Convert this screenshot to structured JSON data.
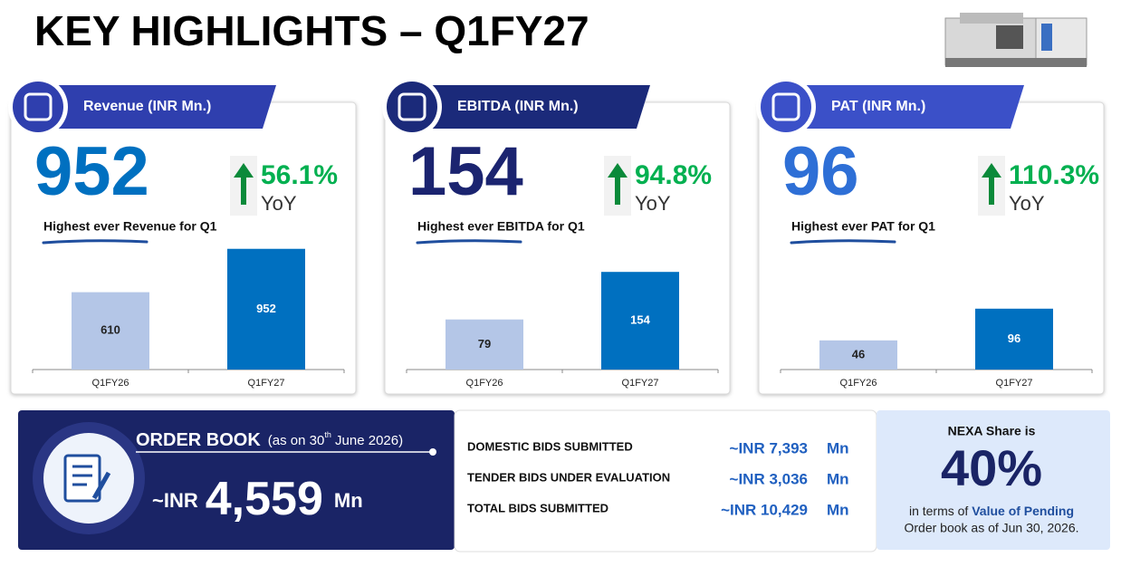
{
  "title": "KEY HIGHLIGHTS – Q1FY27",
  "cards": [
    {
      "label": "Revenue (INR Mn.)",
      "value": "952",
      "value_color": "#0070c0",
      "banner_color": "#2f3fae",
      "growth": "56.1%",
      "growth_unit": "YoY",
      "note": "Highest ever Revenue for Q1",
      "chart": {
        "type": "bar",
        "categories": [
          "Q1FY26",
          "Q1FY27"
        ],
        "values": [
          610,
          952
        ],
        "colors": [
          "#b4c6e7",
          "#0070c0"
        ],
        "ylim": [
          0,
          1000
        ]
      }
    },
    {
      "label": "EBITDA (INR Mn.)",
      "value": "154",
      "value_color": "#1b2470",
      "banner_color": "#1b2a7a",
      "growth": "94.8%",
      "growth_unit": "YoY",
      "note": "Highest ever EBITDA for Q1",
      "chart": {
        "type": "bar",
        "categories": [
          "Q1FY26",
          "Q1FY27"
        ],
        "values": [
          79,
          154
        ],
        "colors": [
          "#b4c6e7",
          "#0070c0"
        ],
        "ylim": [
          0,
          200
        ]
      }
    },
    {
      "label": "PAT (INR Mn.)",
      "value": "96",
      "value_color": "#2e6fd6",
      "banner_color": "#3b50c8",
      "growth": "110.3%",
      "growth_unit": "YoY",
      "note": "Highest ever PAT for Q1",
      "chart": {
        "type": "bar",
        "categories": [
          "Q1FY26",
          "Q1FY27"
        ],
        "values": [
          46,
          96
        ],
        "colors": [
          "#b4c6e7",
          "#0070c0"
        ],
        "ylim": [
          0,
          200
        ]
      }
    }
  ],
  "order_book": {
    "title": "ORDER BOOK",
    "as_on_start": "(as on 30",
    "as_on_sup": "th",
    "as_on_end": " June 2026)",
    "prefix": "~INR",
    "value": "4,559",
    "unit": "Mn"
  },
  "bids": [
    {
      "label": "DOMESTIC BIDS SUBMITTED",
      "value": "~INR 7,393",
      "unit": "Mn"
    },
    {
      "label": "TENDER BIDS UNDER EVALUATION",
      "value": "~INR 3,036",
      "unit": "Mn"
    },
    {
      "label": "TOTAL BIDS SUBMITTED",
      "value": "~INR 10,429",
      "unit": "Mn"
    }
  ],
  "nexa": {
    "heading": "NEXA Share is",
    "value": "40%",
    "line1_start": "in terms of ",
    "line1_bold": "Value of Pending",
    "line2": "Order book as of Jun 30, 2026."
  }
}
